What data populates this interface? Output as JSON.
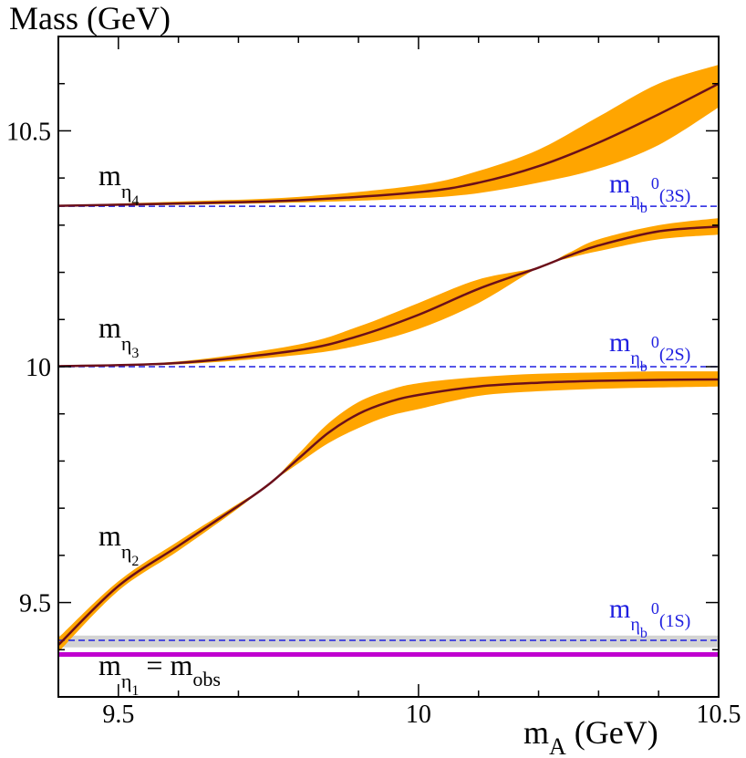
{
  "chart_data": {
    "type": "line",
    "title": "",
    "xlabel": {
      "main": "m",
      "sub": "A",
      "unit": " (GeV)"
    },
    "ylabel": "Mass (GeV)",
    "xlim": [
      9.4,
      10.5
    ],
    "ylim": [
      9.3,
      10.7
    ],
    "x_ticks": [
      {
        "value": 9.5,
        "label": "9.5"
      },
      {
        "value": 10.0,
        "label": "10"
      },
      {
        "value": 10.5,
        "label": "10.5"
      }
    ],
    "y_ticks": [
      {
        "value": 9.5,
        "label": "9.5"
      },
      {
        "value": 10.0,
        "label": "10"
      },
      {
        "value": 10.5,
        "label": "10.5"
      }
    ],
    "colors": {
      "band": "#ffa500",
      "curve": "#6b0f1a",
      "reference": "#1f1fe0",
      "eta1": "#c000d0",
      "grey_band": "#d3d3d3"
    },
    "series": [
      {
        "name": "m_eta2",
        "label": {
          "main": "m",
          "sub": "η",
          "subsub": "2"
        },
        "x": [
          9.4,
          9.5,
          9.6,
          9.7,
          9.75,
          9.8,
          9.85,
          9.9,
          9.95,
          10.0,
          10.1,
          10.2,
          10.3,
          10.4,
          10.5
        ],
        "y": [
          9.41,
          9.535,
          9.62,
          9.705,
          9.75,
          9.805,
          9.86,
          9.9,
          9.925,
          9.94,
          9.958,
          9.966,
          9.97,
          9.972,
          9.973
        ],
        "lower": [
          9.395,
          9.525,
          9.61,
          9.7,
          9.75,
          9.795,
          9.838,
          9.87,
          9.895,
          9.91,
          9.938,
          9.948,
          9.953,
          9.956,
          9.958
        ],
        "upper": [
          9.425,
          9.545,
          9.63,
          9.71,
          9.75,
          9.815,
          9.88,
          9.925,
          9.95,
          9.965,
          9.978,
          9.985,
          9.988,
          9.99,
          9.99
        ]
      },
      {
        "name": "m_eta3",
        "label": {
          "main": "m",
          "sub": "η",
          "subsub": "3"
        },
        "x": [
          9.4,
          9.6,
          9.8,
          9.9,
          10.0,
          10.1,
          10.2,
          10.25,
          10.3,
          10.4,
          10.5
        ],
        "y": [
          10.001,
          10.008,
          10.035,
          10.065,
          10.11,
          10.165,
          10.21,
          10.235,
          10.257,
          10.287,
          10.297
        ],
        "lower": [
          10.001,
          10.005,
          10.025,
          10.045,
          10.08,
          10.135,
          10.21,
          10.23,
          10.245,
          10.27,
          10.28
        ],
        "upper": [
          10.001,
          10.011,
          10.047,
          10.085,
          10.135,
          10.185,
          10.211,
          10.241,
          10.27,
          10.3,
          10.315
        ]
      },
      {
        "name": "m_eta4",
        "label": {
          "main": "m",
          "sub": "η",
          "subsub": "4"
        },
        "x": [
          9.4,
          9.6,
          9.8,
          10.0,
          10.1,
          10.2,
          10.3,
          10.4,
          10.5
        ],
        "y": [
          10.341,
          10.346,
          10.353,
          10.37,
          10.39,
          10.425,
          10.475,
          10.535,
          10.6
        ],
        "lower": [
          10.34,
          10.343,
          10.348,
          10.357,
          10.368,
          10.39,
          10.42,
          10.47,
          10.55
        ],
        "upper": [
          10.342,
          10.35,
          10.36,
          10.385,
          10.415,
          10.46,
          10.53,
          10.6,
          10.64
        ]
      }
    ],
    "reference_lines": [
      {
        "name": "eta_b0_1S",
        "y": 9.42,
        "label": {
          "main": "m",
          "sub": "η",
          "subsub": "b",
          "sup": "0",
          "tail": "(1S)"
        }
      },
      {
        "name": "eta_b0_2S",
        "y": 10.0,
        "label": {
          "main": "m",
          "sub": "η",
          "subsub": "b",
          "sup": "0",
          "tail": "(2S)"
        }
      },
      {
        "name": "eta_b0_3S",
        "y": 10.34,
        "label": {
          "main": "m",
          "sub": "η",
          "subsub": "b",
          "sup": "0",
          "tail": "(3S)"
        }
      }
    ],
    "horizontal_band": {
      "name": "obs-uncertainty",
      "ymin": 9.405,
      "ymax": 9.43
    },
    "eta1_line": {
      "y": 9.39,
      "label": {
        "main": "m",
        "sub": "η",
        "subsub": "1",
        "rel": " = m",
        "rel_sub": "obs"
      }
    }
  }
}
